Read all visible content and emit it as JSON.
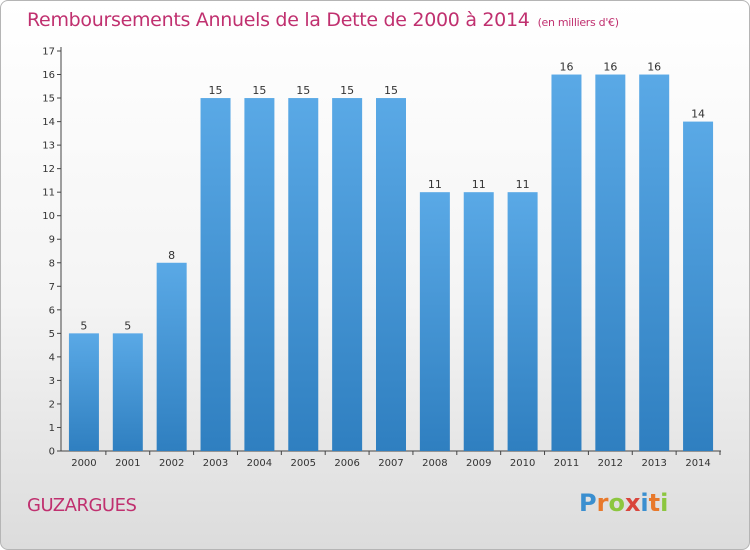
{
  "title": "Remboursements Annuels de la Dette de 2000 à 2014",
  "subtitle": "(en milliers d'€)",
  "commune": "GUZARGUES",
  "brand": {
    "letters": [
      "P",
      "r",
      "o",
      "x",
      "i",
      "t",
      "i"
    ],
    "colors": [
      "#3a8fd0",
      "#e8792b",
      "#8cc63f",
      "#d9453c",
      "#3a8fd0",
      "#e8792b",
      "#8cc63f"
    ]
  },
  "colors": {
    "bar_light": "#5aa9e6",
    "bar_dark": "#2f7fc0",
    "title": "#c0306f"
  },
  "chart_data": {
    "type": "bar",
    "categories": [
      "2000",
      "2001",
      "2002",
      "2003",
      "2004",
      "2005",
      "2006",
      "2007",
      "2008",
      "2009",
      "2010",
      "2011",
      "2012",
      "2013",
      "2014"
    ],
    "values": [
      5,
      5,
      8,
      15,
      15,
      15,
      15,
      15,
      11,
      11,
      11,
      16,
      16,
      16,
      14
    ],
    "ylim": [
      0,
      17
    ],
    "yticks": [
      0,
      1,
      2,
      3,
      4,
      5,
      6,
      7,
      8,
      9,
      10,
      11,
      12,
      13,
      14,
      15,
      16,
      17
    ],
    "grid": false,
    "data_labels": true
  }
}
